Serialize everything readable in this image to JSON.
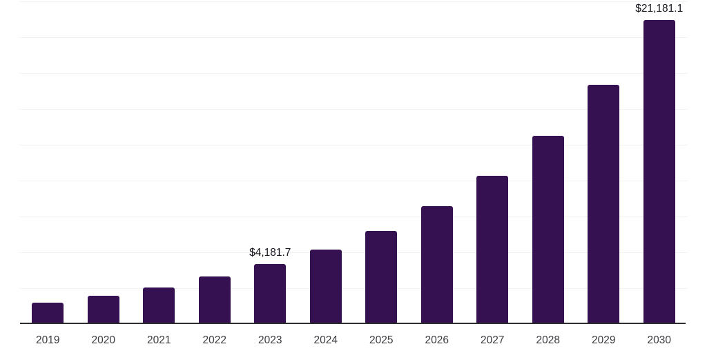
{
  "chart_data": {
    "type": "bar",
    "title": "",
    "xlabel": "",
    "ylabel": "",
    "categories": [
      "2019",
      "2020",
      "2021",
      "2022",
      "2023",
      "2024",
      "2025",
      "2026",
      "2027",
      "2028",
      "2029",
      "2030"
    ],
    "values": [
      1500,
      1980,
      2570,
      3310,
      4181.7,
      5180,
      6470,
      8230,
      10360,
      13140,
      16690,
      21181.1
    ],
    "point_labels": [
      "",
      "",
      "",
      "",
      "$4,181.7",
      "",
      "",
      "",
      "",
      "",
      "",
      "$21,181.1"
    ],
    "ylim": [
      0,
      22500
    ],
    "gridline_step": 2500,
    "grid": "horizontal",
    "legend_position": "none",
    "colors": {
      "bar": "#361152",
      "gridline": "#f2f2f5",
      "axis_line": "#2d2d31",
      "value_label_text": "#15151d",
      "tick_label_text": "#3a3a3f",
      "background": "#ffffff"
    }
  }
}
